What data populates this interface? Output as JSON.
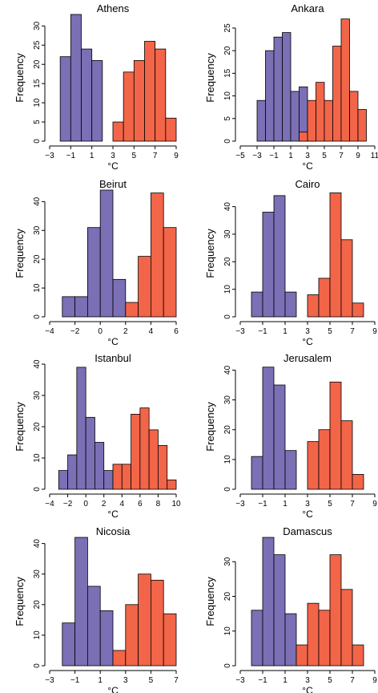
{
  "colors": {
    "low": "#7b6fb5",
    "high": "#f26548",
    "stroke": "#000000"
  },
  "chart_data": [
    {
      "type": "bar",
      "title": "Athens",
      "xlabel": "°C",
      "ylabel": "Frequency",
      "xlim": [
        -3,
        9
      ],
      "ylim": [
        0,
        33
      ],
      "xticks": [
        -3,
        -1,
        1,
        3,
        5,
        7,
        9
      ],
      "yticks": [
        0,
        5,
        10,
        15,
        20,
        25,
        30
      ],
      "series": [
        {
          "color": "low",
          "bins": [
            [
              -2,
              -1,
              22
            ],
            [
              -1,
              0,
              33
            ],
            [
              0,
              1,
              24
            ],
            [
              1,
              2,
              21
            ]
          ]
        },
        {
          "color": "high",
          "bins": [
            [
              3,
              4,
              5
            ],
            [
              4,
              5,
              18
            ],
            [
              5,
              6,
              21
            ],
            [
              6,
              7,
              26
            ],
            [
              7,
              8,
              24
            ],
            [
              8,
              9,
              6
            ]
          ]
        }
      ]
    },
    {
      "type": "bar",
      "title": "Ankara",
      "xlabel": "°C",
      "ylabel": "Frequency",
      "xlim": [
        -5,
        11
      ],
      "ylim": [
        0,
        28
      ],
      "xticks": [
        -5,
        -3,
        -1,
        1,
        3,
        5,
        7,
        9,
        11
      ],
      "yticks": [
        0,
        5,
        10,
        15,
        20,
        25
      ],
      "series": [
        {
          "color": "low",
          "bins": [
            [
              -3,
              -2,
              9
            ],
            [
              -2,
              -1,
              20
            ],
            [
              -1,
              0,
              23
            ],
            [
              0,
              1,
              24
            ],
            [
              1,
              2,
              11
            ],
            [
              2,
              3,
              12
            ],
            [
              3,
              4,
              1
            ]
          ]
        },
        {
          "color": "high",
          "bins": [
            [
              2,
              3,
              2
            ],
            [
              3,
              4,
              9
            ],
            [
              4,
              5,
              13
            ],
            [
              5,
              6,
              9
            ],
            [
              6,
              7,
              21
            ],
            [
              7,
              8,
              27
            ],
            [
              8,
              9,
              11
            ],
            [
              9,
              10,
              7
            ]
          ]
        }
      ]
    },
    {
      "type": "bar",
      "title": "Beirut",
      "xlabel": "°C",
      "ylabel": "Frequency",
      "xlim": [
        -4,
        6
      ],
      "ylim": [
        0,
        44
      ],
      "xticks": [
        -4,
        -2,
        0,
        2,
        4,
        6
      ],
      "yticks": [
        0,
        10,
        20,
        30,
        40
      ],
      "series": [
        {
          "color": "low",
          "bins": [
            [
              -3,
              -2,
              7
            ],
            [
              -2,
              -1,
              7
            ],
            [
              -1,
              0,
              31
            ],
            [
              0,
              1,
              44
            ],
            [
              1,
              2,
              13
            ]
          ]
        },
        {
          "color": "high",
          "bins": [
            [
              2,
              3,
              5
            ],
            [
              3,
              4,
              21
            ],
            [
              4,
              5,
              43
            ],
            [
              5,
              6,
              31
            ]
          ]
        }
      ]
    },
    {
      "type": "bar",
      "title": "Cairo",
      "xlabel": "°C",
      "ylabel": "Frequency",
      "xlim": [
        -3,
        9
      ],
      "ylim": [
        0,
        46
      ],
      "xticks": [
        -3,
        -1,
        1,
        3,
        5,
        7,
        9
      ],
      "yticks": [
        0,
        10,
        20,
        30,
        40
      ],
      "series": [
        {
          "color": "low",
          "bins": [
            [
              -2,
              -1,
              9
            ],
            [
              -1,
              0,
              38
            ],
            [
              0,
              1,
              44
            ],
            [
              1,
              2,
              9
            ]
          ]
        },
        {
          "color": "high",
          "bins": [
            [
              3,
              4,
              8
            ],
            [
              4,
              5,
              14
            ],
            [
              5,
              6,
              45
            ],
            [
              6,
              7,
              28
            ],
            [
              7,
              8,
              5
            ]
          ]
        }
      ]
    },
    {
      "type": "bar",
      "title": "Istanbul",
      "xlabel": "°C",
      "ylabel": "Frequency",
      "xlim": [
        -4,
        10
      ],
      "ylim": [
        0,
        40
      ],
      "xticks": [
        -4,
        -2,
        0,
        2,
        4,
        6,
        8,
        10
      ],
      "yticks": [
        0,
        10,
        20,
        30,
        40
      ],
      "series": [
        {
          "color": "low",
          "bins": [
            [
              -3,
              -2,
              6
            ],
            [
              -2,
              -1,
              11
            ],
            [
              -1,
              0,
              39
            ],
            [
              0,
              1,
              23
            ],
            [
              1,
              2,
              15
            ],
            [
              2,
              3,
              6
            ]
          ]
        },
        {
          "color": "high",
          "bins": [
            [
              3,
              4,
              8
            ],
            [
              4,
              5,
              8
            ],
            [
              5,
              6,
              24
            ],
            [
              6,
              7,
              26
            ],
            [
              7,
              8,
              19
            ],
            [
              8,
              9,
              14
            ],
            [
              9,
              10,
              3
            ]
          ]
        }
      ]
    },
    {
      "type": "bar",
      "title": "Jerusalem",
      "xlabel": "°C",
      "ylabel": "Frequency",
      "xlim": [
        -3,
        9
      ],
      "ylim": [
        0,
        42
      ],
      "xticks": [
        -3,
        -1,
        1,
        3,
        5,
        7,
        9
      ],
      "yticks": [
        0,
        10,
        20,
        30,
        40
      ],
      "series": [
        {
          "color": "low",
          "bins": [
            [
              -2,
              -1,
              11
            ],
            [
              -1,
              0,
              41
            ],
            [
              0,
              1,
              35
            ],
            [
              1,
              2,
              13
            ]
          ]
        },
        {
          "color": "high",
          "bins": [
            [
              3,
              4,
              16
            ],
            [
              4,
              5,
              20
            ],
            [
              5,
              6,
              36
            ],
            [
              6,
              7,
              23
            ],
            [
              7,
              8,
              5
            ]
          ]
        }
      ]
    },
    {
      "type": "bar",
      "title": "Nicosia",
      "xlabel": "°C",
      "ylabel": "Frequency",
      "xlim": [
        -3,
        7
      ],
      "ylim": [
        0,
        42
      ],
      "xticks": [
        -3,
        -1,
        1,
        3,
        5,
        7
      ],
      "yticks": [
        0,
        10,
        20,
        30,
        40
      ],
      "series": [
        {
          "color": "low",
          "bins": [
            [
              -2,
              -1,
              14
            ],
            [
              -1,
              0,
              42
            ],
            [
              0,
              1,
              26
            ],
            [
              1,
              2,
              18
            ]
          ]
        },
        {
          "color": "high",
          "bins": [
            [
              2,
              3,
              5
            ],
            [
              3,
              4,
              20
            ],
            [
              4,
              5,
              30
            ],
            [
              5,
              6,
              28
            ],
            [
              6,
              7,
              17
            ]
          ]
        }
      ]
    },
    {
      "type": "bar",
      "title": "Damascus",
      "xlabel": "°C",
      "ylabel": "Frequency",
      "xlim": [
        -3,
        9
      ],
      "ylim": [
        0,
        37
      ],
      "xticks": [
        -3,
        -1,
        1,
        3,
        5,
        7,
        9
      ],
      "yticks": [
        0,
        10,
        20,
        30
      ],
      "series": [
        {
          "color": "low",
          "bins": [
            [
              -2,
              -1,
              16
            ],
            [
              -1,
              0,
              37
            ],
            [
              0,
              1,
              32
            ],
            [
              1,
              2,
              15
            ]
          ]
        },
        {
          "color": "high",
          "bins": [
            [
              2,
              3,
              6
            ],
            [
              3,
              4,
              18
            ],
            [
              4,
              5,
              16
            ],
            [
              5,
              6,
              32
            ],
            [
              6,
              7,
              22
            ],
            [
              7,
              8,
              6
            ]
          ]
        }
      ]
    }
  ]
}
